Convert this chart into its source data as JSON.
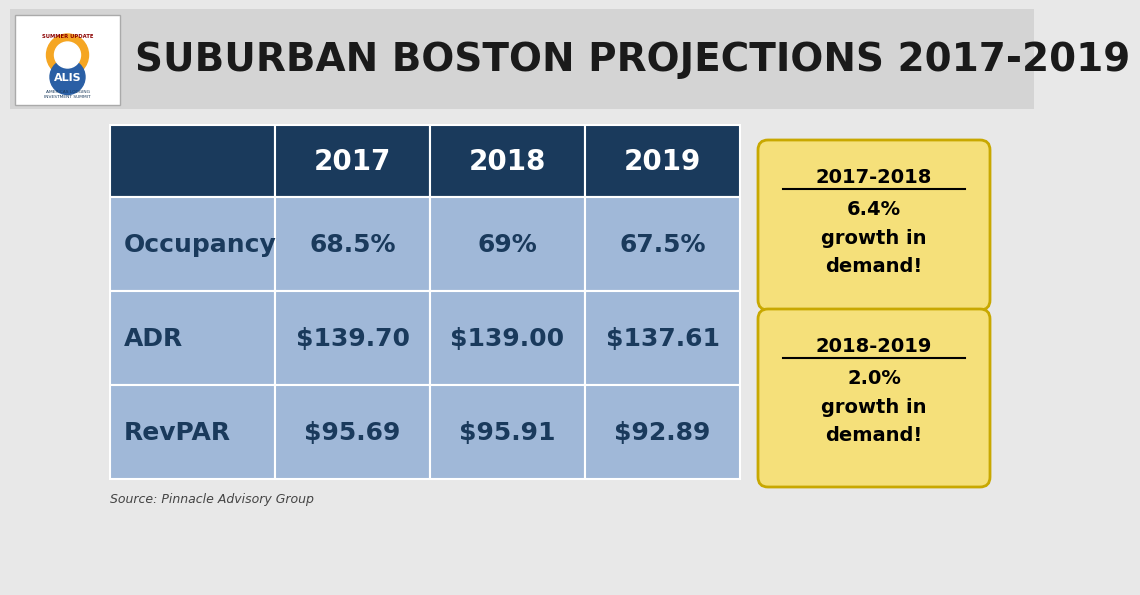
{
  "title": "SUBURBAN BOSTON PROJECTIONS 2017-2019",
  "title_fontsize": 28,
  "title_fontweight": "bold",
  "title_color": "#1a1a1a",
  "header_bg": "#1a3a5c",
  "header_text_color": "#ffffff",
  "cell_bg": "#a0b8d8",
  "columns": [
    "2017",
    "2018",
    "2019"
  ],
  "rows": [
    "Occupancy",
    "ADR",
    "RevPAR"
  ],
  "values": [
    [
      "68.5%",
      "69%",
      "67.5%"
    ],
    [
      "$139.70",
      "$139.00",
      "$137.61"
    ],
    [
      "$95.69",
      "$95.91",
      "$92.89"
    ]
  ],
  "callout1_title": "2017-2018",
  "callout1_line1": "6.4%",
  "callout1_line2": "growth in",
  "callout1_line3": "demand!",
  "callout2_title": "2018-2019",
  "callout2_line1": "2.0%",
  "callout2_line2": "growth in",
  "callout2_line3": "demand!",
  "callout_bg": "#f5e07a",
  "callout_border": "#c8a800",
  "source_text": "Source: Pinnacle Advisory Group",
  "bg_color": "#e8e8e8",
  "header_bar_bg": "#d4d4d4"
}
